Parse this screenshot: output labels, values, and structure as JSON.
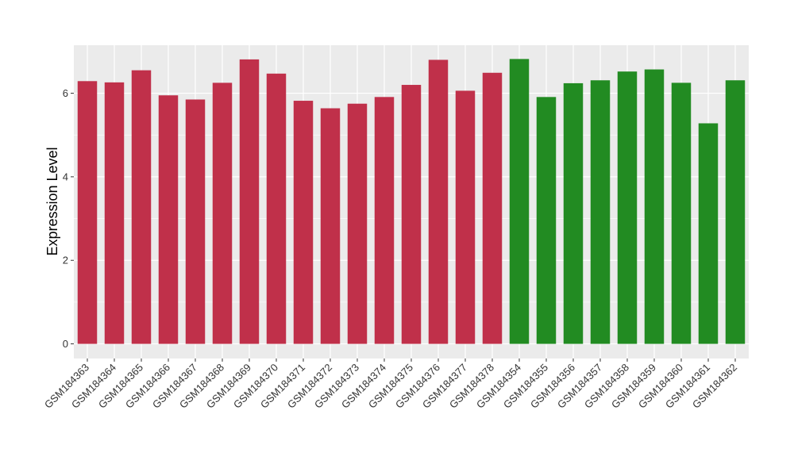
{
  "chart_data": {
    "type": "bar",
    "title": "",
    "xlabel": "",
    "ylabel": "Expression Level",
    "ylim": [
      -0.35,
      7.15
    ],
    "yticks": [
      0,
      2,
      4,
      6
    ],
    "ytick_labels": [
      "0",
      "2",
      "4",
      "6"
    ],
    "grid": true,
    "legend": "none",
    "categories": [
      "GSM184363",
      "GSM184364",
      "GSM184365",
      "GSM184366",
      "GSM184367",
      "GSM184368",
      "GSM184369",
      "GSM184370",
      "GSM184371",
      "GSM184372",
      "GSM184373",
      "GSM184374",
      "GSM184375",
      "GSM184376",
      "GSM184377",
      "GSM184378",
      "GSM184354",
      "GSM184355",
      "GSM184356",
      "GSM184357",
      "GSM184358",
      "GSM184359",
      "GSM184360",
      "GSM184361",
      "GSM184362"
    ],
    "values": [
      6.29,
      6.26,
      6.55,
      5.95,
      5.85,
      6.25,
      6.81,
      6.47,
      5.82,
      5.64,
      5.75,
      5.91,
      6.2,
      6.8,
      6.06,
      6.49,
      6.82,
      5.91,
      6.24,
      6.31,
      6.52,
      6.57,
      6.25,
      5.28,
      6.31
    ],
    "bar_colors": [
      "#c0304a",
      "#c0304a",
      "#c0304a",
      "#c0304a",
      "#c0304a",
      "#c0304a",
      "#c0304a",
      "#c0304a",
      "#c0304a",
      "#c0304a",
      "#c0304a",
      "#c0304a",
      "#c0304a",
      "#c0304a",
      "#c0304a",
      "#c0304a",
      "#228b22",
      "#228b22",
      "#228b22",
      "#228b22",
      "#228b22",
      "#228b22",
      "#228b22",
      "#228b22",
      "#228b22"
    ],
    "panel_background": "#ebebeb",
    "grid_color": "#ffffff"
  }
}
